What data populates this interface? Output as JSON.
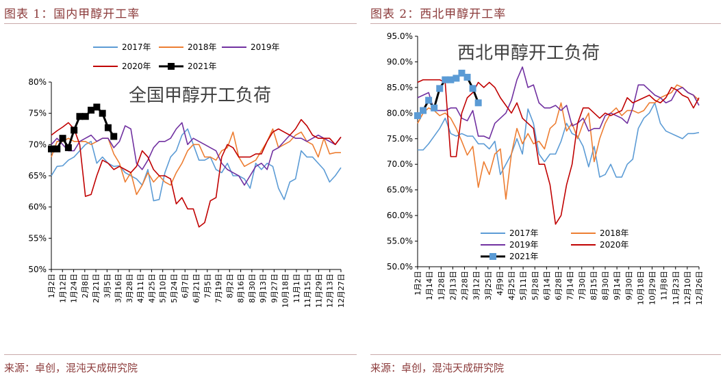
{
  "figure1": {
    "caption": "图表 1：国内甲醇开工率",
    "source": "来源：卓创，混沌天成研究院"
  },
  "figure2": {
    "caption": "图表 2：西北甲醇开工率",
    "source": "来源：卓创，混沌天成研究院"
  },
  "chart_data": [
    {
      "type": "line",
      "title": "全国甲醇开工负荷",
      "xlabel": "",
      "ylabel": "",
      "ylim": [
        50,
        80
      ],
      "yticks": [
        "50%",
        "55%",
        "60%",
        "65%",
        "70%",
        "75%",
        "80%"
      ],
      "yticks_values": [
        50,
        55,
        60,
        65,
        70,
        75,
        80
      ],
      "x_ticks": [
        "1月2日",
        "1月12日",
        "1月24日",
        "2月8日",
        "2月21日",
        "3月5日",
        "3月16日",
        "3月28日",
        "4月11日",
        "4月25日",
        "5月10日",
        "5月24日",
        "6月7日",
        "6月21日",
        "7月5日",
        "7月19日",
        "8月2日",
        "8月16日",
        "8月30日",
        "9月13日",
        "9月27日",
        "10月18日",
        "11月1日",
        "11月15日",
        "11月29日",
        "12月13日",
        "12月27日"
      ],
      "n_points": 52,
      "legend_position": "top",
      "colors": {
        "2017年": "#5b9bd5",
        "2018年": "#ed7d31",
        "2019年": "#7030a0",
        "2020年": "#c00000",
        "2021年": "#000000"
      },
      "series": [
        {
          "name": "2017年",
          "values": [
            65.0,
            66.5,
            66.6,
            67.5,
            68.0,
            69.0,
            70.0,
            70.5,
            67.0,
            68.0,
            67.0,
            66.5,
            66.6,
            65.5,
            65.0,
            64.5,
            63.5,
            66.0,
            61.0,
            61.2,
            65.5,
            68.0,
            69.0,
            71.5,
            72.5,
            70.0,
            67.5,
            67.5,
            68.0,
            66.0,
            65.5,
            67.0,
            65.0,
            65.0,
            64.5,
            63.0,
            67.0,
            66.0,
            67.0,
            66.5,
            63.0,
            61.2,
            64.0,
            64.5,
            69.0,
            68.0,
            68.0,
            67.0,
            66.0,
            64.0,
            65.0,
            66.3
          ]
        },
        {
          "name": "2018年",
          "values": [
            68.0,
            70.5,
            70.5,
            71.0,
            70.5,
            70.5,
            70.5,
            70.0,
            70.5,
            71.0,
            71.0,
            68.5,
            67.0,
            64.0,
            65.5,
            62.0,
            63.5,
            65.5,
            64.0,
            65.0,
            64.0,
            63.5,
            65.5,
            67.0,
            69.0,
            70.0,
            70.0,
            68.0,
            68.0,
            67.5,
            69.0,
            69.5,
            72.0,
            68.0,
            66.5,
            67.0,
            67.5,
            69.0,
            70.5,
            72.5,
            69.5,
            70.0,
            70.5,
            71.5,
            72.0,
            70.5,
            70.0,
            68.0,
            71.0,
            68.5,
            68.7,
            68.7
          ]
        },
        {
          "name": "2019年",
          "values": [
            70.0,
            71.0,
            70.0,
            69.0,
            69.0,
            70.5,
            71.0,
            71.5,
            70.5,
            71.0,
            71.0,
            69.5,
            70.5,
            73.0,
            72.5,
            67.0,
            66.0,
            67.5,
            69.5,
            70.5,
            70.5,
            71.0,
            72.5,
            73.5,
            70.0,
            71.0,
            70.5,
            70.0,
            69.5,
            69.0,
            67.0,
            66.0,
            65.5,
            65.0,
            63.5,
            65.0,
            66.5,
            67.0,
            66.0,
            69.0,
            69.5,
            70.5,
            71.5,
            71.0,
            71.0,
            70.5,
            71.0,
            71.5,
            71.0,
            70.5,
            70.0,
            71.2
          ]
        },
        {
          "name": "2020年",
          "values": [
            71.5,
            72.2,
            72.8,
            73.5,
            72.5,
            70.0,
            61.7,
            62.0,
            65.0,
            67.5,
            67.0,
            66.0,
            66.5,
            66.0,
            65.5,
            66.5,
            69.0,
            68.0,
            66.0,
            65.0,
            65.0,
            64.5,
            60.5,
            61.5,
            59.7,
            59.7,
            56.8,
            57.5,
            61.0,
            61.5,
            68.0,
            70.0,
            69.5,
            68.0,
            68.0,
            68.0,
            68.5,
            68.5,
            70.5,
            72.0,
            72.5,
            72.0,
            71.5,
            72.5,
            74.0,
            73.0,
            71.5,
            71.0,
            71.0,
            71.0,
            70.0,
            71.2
          ]
        },
        {
          "name": "2021年",
          "values": [
            69.3,
            69.3,
            71.0,
            69.5,
            72.3,
            74.5,
            74.5,
            75.5,
            76.0,
            75.0,
            72.7,
            71.3
          ]
        }
      ]
    },
    {
      "type": "line",
      "title": "西北甲醇开工负荷",
      "xlabel": "",
      "ylabel": "",
      "ylim": [
        50,
        95
      ],
      "yticks": [
        "50.0%",
        "55.0%",
        "60.0%",
        "65.0%",
        "70.0%",
        "75.0%",
        "80.0%",
        "85.0%",
        "90.0%",
        "95.0%"
      ],
      "yticks_values": [
        50,
        55,
        60,
        65,
        70,
        75,
        80,
        85,
        90,
        95
      ],
      "x_ticks": [
        "1月2日",
        "1月14日",
        "1月28日",
        "2月13日",
        "2月28日",
        "3月12日",
        "3月25日",
        "4月9日",
        "4月25日",
        "5月11日",
        "5月28日",
        "6月14日",
        "6月28日",
        "7月14日",
        "7月30日",
        "8月15日",
        "8月30日",
        "9月14日",
        "9月30日",
        "10月18日",
        "10月29日",
        "11月8日",
        "11月23日",
        "12月10日",
        "12月26日"
      ],
      "n_points": 52,
      "legend_position": "bottom",
      "colors": {
        "2017年": "#5b9bd5",
        "2018年": "#ed7d31",
        "2019年": "#7030a0",
        "2020年": "#c00000",
        "2021年": "#000000"
      },
      "series": [
        {
          "name": "2017年",
          "values": [
            72.8,
            72.8,
            74.0,
            75.5,
            77.0,
            79.0,
            76.0,
            75.5,
            76.0,
            75.5,
            75.5,
            74.0,
            74.0,
            73.0,
            74.5,
            68.0,
            70.0,
            72.0,
            75.0,
            72.0,
            80.8,
            78.0,
            72.0,
            70.5,
            72.0,
            72.0,
            74.5,
            78.0,
            76.0,
            75.5,
            73.5,
            69.5,
            73.5,
            67.5,
            68.0,
            70.0,
            67.5,
            67.5,
            70.0,
            71.0,
            77.0,
            79.0,
            80.0,
            82.0,
            78.0,
            76.5,
            76.0,
            75.5,
            75.0,
            76.0,
            76.0,
            76.2
          ]
        },
        {
          "name": "2018年",
          "values": [
            78.0,
            80.0,
            81.0,
            80.5,
            79.5,
            80.0,
            79.0,
            77.0,
            74.5,
            71.8,
            73.5,
            65.5,
            70.5,
            68.0,
            72.0,
            73.0,
            63.2,
            72.0,
            77.0,
            74.0,
            76.0,
            74.0,
            74.5,
            73.0,
            77.0,
            78.0,
            82.0,
            76.5,
            78.0,
            75.0,
            78.0,
            80.0,
            70.5,
            75.0,
            78.0,
            80.0,
            81.0,
            79.5,
            80.5,
            80.5,
            80.0,
            80.5,
            82.0,
            82.0,
            83.0,
            83.5,
            84.0,
            85.5,
            85.0,
            84.0,
            83.5,
            82.5
          ]
        },
        {
          "name": "2019年",
          "values": [
            83.0,
            83.5,
            84.0,
            80.5,
            80.5,
            80.5,
            81.0,
            81.0,
            79.0,
            78.5,
            80.5,
            75.5,
            75.5,
            75.0,
            78.0,
            79.0,
            80.0,
            82.5,
            86.5,
            89.0,
            85.0,
            85.5,
            82.0,
            81.0,
            81.0,
            81.5,
            80.5,
            81.5,
            77.5,
            78.0,
            79.0,
            76.5,
            77.0,
            77.0,
            79.5,
            80.0,
            79.5,
            79.0,
            78.0,
            81.0,
            85.5,
            85.5,
            84.5,
            83.5,
            83.0,
            82.0,
            82.5,
            84.5,
            85.0,
            84.0,
            83.5,
            81.5
          ]
        },
        {
          "name": "2020年",
          "values": [
            86.0,
            86.5,
            86.5,
            86.5,
            86.5,
            86.0,
            71.5,
            71.5,
            80.0,
            83.0,
            84.0,
            86.0,
            85.0,
            86.0,
            85.0,
            83.0,
            81.5,
            80.0,
            82.0,
            79.0,
            78.0,
            77.0,
            70.0,
            70.0,
            66.0,
            58.3,
            60.0,
            66.0,
            70.0,
            78.0,
            81.0,
            81.0,
            80.0,
            79.0,
            80.0,
            79.5,
            80.0,
            80.5,
            83.0,
            82.0,
            82.5,
            83.0,
            83.5,
            82.5,
            82.0,
            83.0,
            85.0,
            84.5,
            83.5,
            83.0,
            81.0,
            83.0
          ]
        },
        {
          "name": "2021年",
          "values": [
            79.5,
            80.5,
            82.5,
            81.0,
            84.8,
            86.5,
            86.5,
            86.8,
            87.8,
            87.0,
            84.8,
            82.0
          ]
        }
      ]
    }
  ]
}
